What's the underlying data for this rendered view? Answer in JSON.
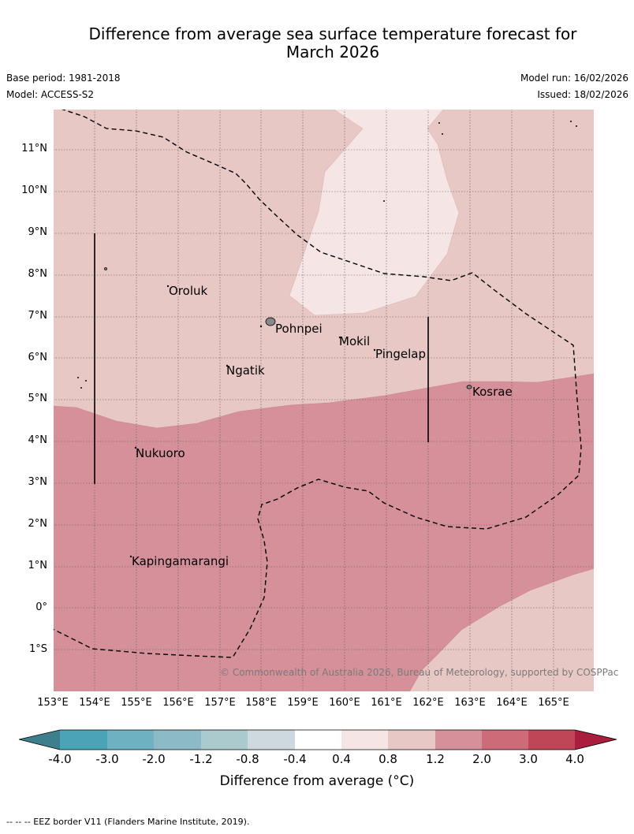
{
  "title_line1": "Difference from average sea surface temperature forecast for",
  "title_line2": "March 2026",
  "base_period": "Base period: 1981-2018",
  "model": "Model: ACCESS-S2",
  "model_run": "Model run: 16/02/2026",
  "issued": "Issued: 18/02/2026",
  "copyright": "© Commonwealth of Australia 2026, Bureau of Meteorology, supported by COSPPac",
  "lat_labels": [
    "11°N",
    "10°N",
    "9°N",
    "8°N",
    "7°N",
    "6°N",
    "5°N",
    "4°N",
    "3°N",
    "2°N",
    "1°N",
    "0°",
    "1°S"
  ],
  "lon_labels": [
    "153°E",
    "154°E",
    "155°E",
    "156°E",
    "157°E",
    "158°E",
    "159°E",
    "160°E",
    "161°E",
    "162°E",
    "163°E",
    "164°E",
    "165°E"
  ],
  "places": {
    "oroluk": "Oroluk",
    "pohnpei": "Pohnpei",
    "mokil": "Mokil",
    "pingelap": "Pingelap",
    "ngatik": "Ngatik",
    "kosrae": "Kosrae",
    "nukuoro": "Nukuoro",
    "kapingamarangi": "Kapingamarangi"
  },
  "colorbar": {
    "ticks": [
      "-4.0",
      "-3.0",
      "-2.0",
      "-1.2",
      "-0.8",
      "-0.4",
      "0.4",
      "0.8",
      "1.2",
      "2.0",
      "3.0",
      "4.0"
    ],
    "colors": [
      "#3d7f8c",
      "#4aa3b6",
      "#6eb1c1",
      "#8cbac6",
      "#aacace",
      "#cdd9de",
      "#ffffff",
      "#f5e6e5",
      "#e8c8c4",
      "#d6909a",
      "#cd6b78",
      "#bf4657",
      "#a81e3c"
    ],
    "label": "Difference from average (°C)"
  },
  "footnote": "--  --  -- EEZ border V11 (Flanders Marine Institute, 2019)."
}
